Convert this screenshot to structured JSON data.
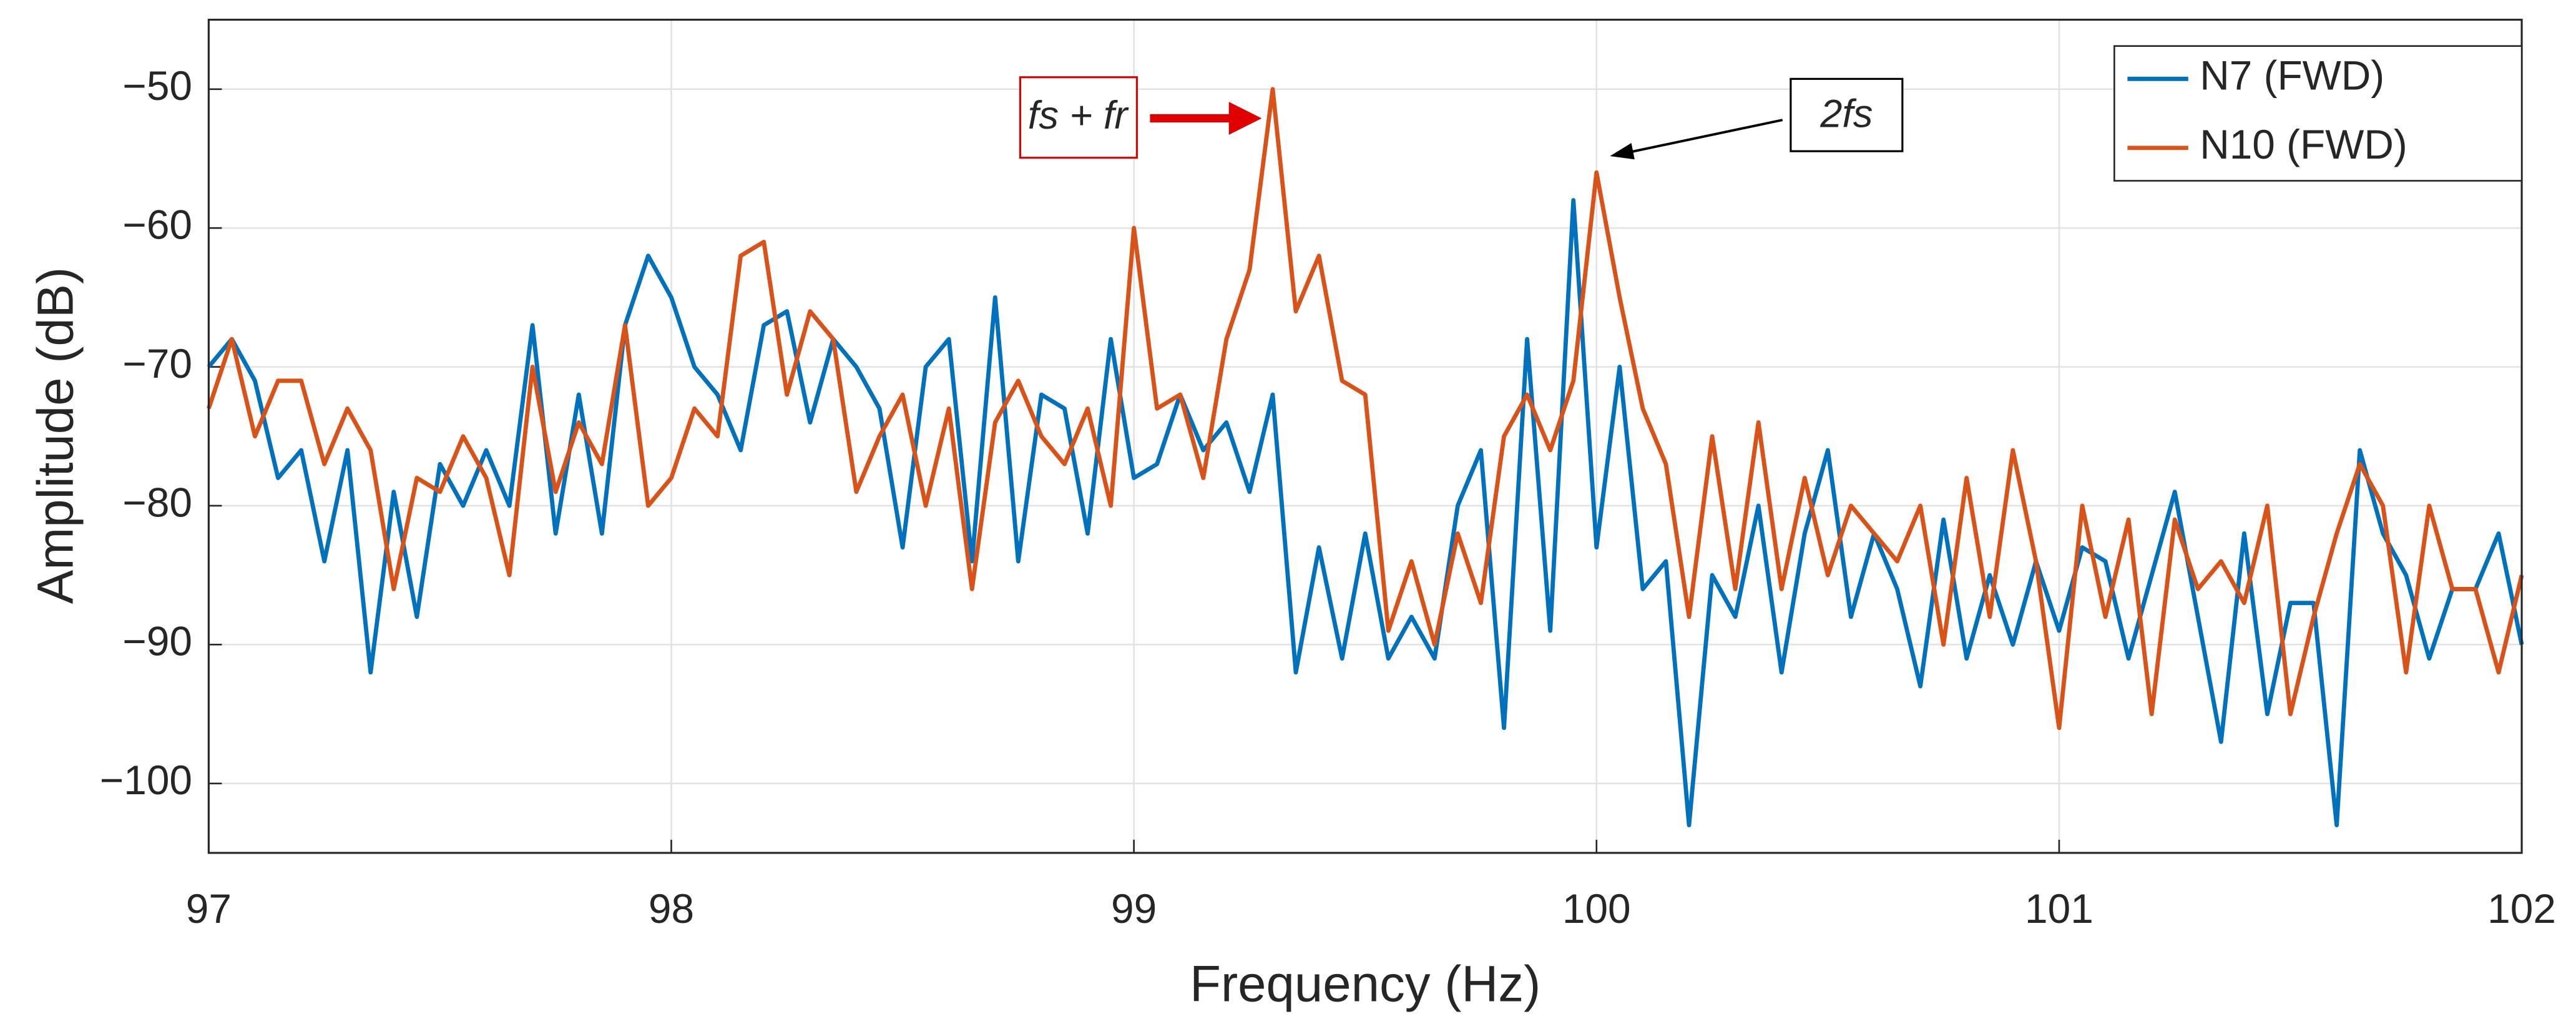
{
  "chart_data": {
    "type": "line",
    "xlabel": "Frequency (Hz)",
    "ylabel": "Amplitude (dB)",
    "x": [
      97,
      97.05,
      97.1,
      97.15,
      97.2,
      97.25,
      97.3,
      97.35,
      97.4,
      97.45,
      97.5,
      97.55,
      97.6,
      97.65,
      97.7,
      97.75,
      97.8,
      97.85,
      97.9,
      97.95,
      98,
      98.05,
      98.1,
      98.15,
      98.2,
      98.25,
      98.3,
      98.35,
      98.4,
      98.45,
      98.5,
      98.55,
      98.6,
      98.65,
      98.7,
      98.75,
      98.8,
      98.85,
      98.9,
      98.95,
      99,
      99.05,
      99.1,
      99.15,
      99.2,
      99.25,
      99.3,
      99.35,
      99.4,
      99.45,
      99.5,
      99.55,
      99.6,
      99.65,
      99.7,
      99.75,
      99.8,
      99.85,
      99.9,
      99.95,
      100,
      100.05,
      100.1,
      100.15,
      100.2,
      100.25,
      100.3,
      100.35,
      100.4,
      100.45,
      100.5,
      100.55,
      100.6,
      100.65,
      100.7,
      100.75,
      100.8,
      100.85,
      100.9,
      100.95,
      101,
      101.05,
      101.1,
      101.15,
      101.2,
      101.25,
      101.3,
      101.35,
      101.4,
      101.45,
      101.5,
      101.55,
      101.6,
      101.65,
      101.7,
      101.75,
      101.8,
      101.85,
      101.9,
      101.95,
      102
    ],
    "series": [
      {
        "name": "N7 (FWD)",
        "color": "#0072BD",
        "values": [
          -70,
          -68,
          -71,
          -78,
          -76,
          -84,
          -76,
          -92,
          -79,
          -88,
          -77,
          -80,
          -76,
          -80,
          -67,
          -82,
          -72,
          -82,
          -67,
          -62,
          -65,
          -70,
          -72,
          -76,
          -67,
          -66,
          -74,
          -68,
          -70,
          -73,
          -83,
          -70,
          -68,
          -84,
          -65,
          -84,
          -72,
          -73,
          -82,
          -68,
          -78,
          -77,
          -72,
          -76,
          -74,
          -79,
          -72,
          -92,
          -83,
          -91,
          -82,
          -91,
          -88,
          -91,
          -80,
          -76,
          -96,
          -68,
          -89,
          -58,
          -83,
          -70,
          -86,
          -84,
          -103,
          -85,
          -88,
          -80,
          -92,
          -82,
          -76,
          -88,
          -82,
          -86,
          -93,
          -81,
          -91,
          -85,
          -90,
          -84,
          -89,
          -83,
          -84,
          -91,
          -85,
          -79,
          -88,
          -97,
          -82,
          -95,
          -87,
          -87,
          -103,
          -76,
          -82,
          -85,
          -91,
          -86,
          -86,
          -82,
          -90
        ]
      },
      {
        "name": "N10 (FWD)",
        "color": "#D95319",
        "values": [
          -73,
          -68,
          -75,
          -71,
          -71,
          -77,
          -73,
          -76,
          -86,
          -78,
          -79,
          -75,
          -78,
          -85,
          -70,
          -79,
          -74,
          -77,
          -67,
          -80,
          -78,
          -73,
          -75,
          -62,
          -61,
          -72,
          -66,
          -68,
          -79,
          -75,
          -72,
          -80,
          -73,
          -86,
          -74,
          -71,
          -75,
          -77,
          -73,
          -80,
          -60,
          -73,
          -72,
          -78,
          -68,
          -63,
          -50,
          -66,
          -62,
          -71,
          -72,
          -89,
          -84,
          -90,
          -82,
          -87,
          -75,
          -72,
          -76,
          -71,
          -56,
          -65,
          -73,
          -77,
          -88,
          -75,
          -86,
          -74,
          -86,
          -78,
          -85,
          -80,
          -82,
          -84,
          -80,
          -90,
          -78,
          -88,
          -76,
          -84,
          -96,
          -80,
          -88,
          -81,
          -95,
          -81,
          -86,
          -84,
          -87,
          -80,
          -95,
          -88,
          -82,
          -77,
          -80,
          -92,
          -80,
          -86,
          -86,
          -92,
          -85
        ]
      }
    ],
    "xlim": [
      97,
      102
    ],
    "ylim": [
      -105,
      -45
    ],
    "xticks": [
      97,
      98,
      99,
      100,
      101,
      102
    ],
    "yticks": [
      {
        "value": -100,
        "label": "−100"
      },
      {
        "value": -90,
        "label": "−90"
      },
      {
        "value": -80,
        "label": "−80"
      },
      {
        "value": -70,
        "label": "−70"
      },
      {
        "value": -60,
        "label": "−60"
      },
      {
        "value": -50,
        "label": "−50"
      }
    ],
    "grid": true,
    "legend": "northeast",
    "annotations": [
      {
        "text": "fs + fr",
        "color": "#e00000"
      },
      {
        "text": "2fs",
        "color": "#000000"
      }
    ]
  }
}
